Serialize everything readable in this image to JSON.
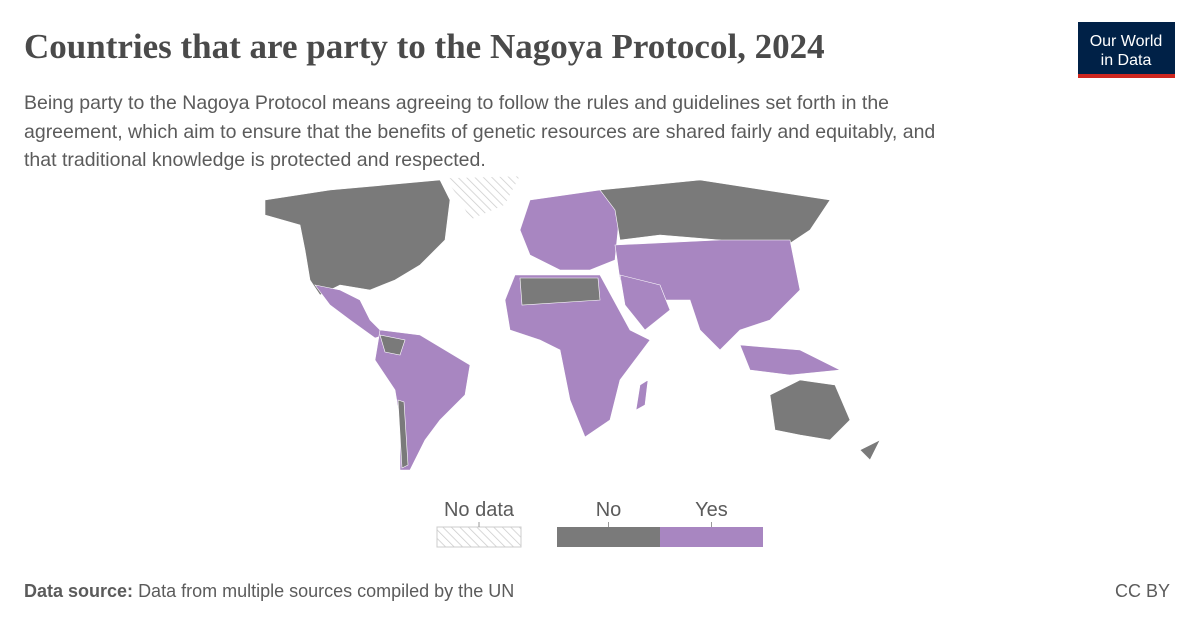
{
  "header": {
    "title": "Countries that are party to the Nagoya Protocol, 2024",
    "subtitle": [
      "Being party to the Nagoya Protocol means agreeing to follow the rules and guidelines set forth in the",
      "agreement, which aim to ensure that the benefits of genetic resources are shared fairly and equitably, and",
      "that traditional knowledge is protected and respected."
    ]
  },
  "logo": {
    "lines": [
      "Our World",
      "in Data"
    ]
  },
  "legend": {
    "items": [
      {
        "label": "No data",
        "color": "hatch"
      },
      {
        "label": "No",
        "color": "#7a7a7a"
      },
      {
        "label": "Yes",
        "color": "#a886c1"
      }
    ]
  },
  "footer": {
    "source_label": "Data source:",
    "source": "Data from multiple sources compiled by the UN",
    "license": "CC BY"
  }
}
